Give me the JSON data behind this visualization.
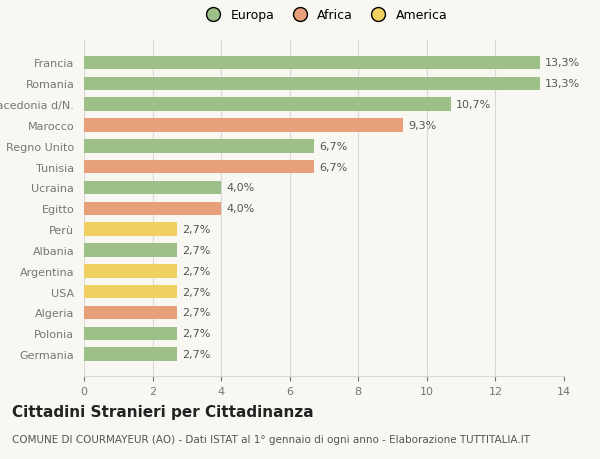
{
  "categories": [
    "Germania",
    "Polonia",
    "Algeria",
    "USA",
    "Argentina",
    "Albania",
    "Perù",
    "Egitto",
    "Ucraina",
    "Tunisia",
    "Regno Unito",
    "Marocco",
    "Macedonia d/N.",
    "Romania",
    "Francia"
  ],
  "values": [
    2.7,
    2.7,
    2.7,
    2.7,
    2.7,
    2.7,
    2.7,
    4.0,
    4.0,
    6.7,
    6.7,
    9.3,
    10.7,
    13.3,
    13.3
  ],
  "continents": [
    "Europa",
    "Europa",
    "Africa",
    "America",
    "America",
    "Europa",
    "America",
    "Africa",
    "Europa",
    "Africa",
    "Europa",
    "Africa",
    "Europa",
    "Europa",
    "Europa"
  ],
  "labels": [
    "2,7%",
    "2,7%",
    "2,7%",
    "2,7%",
    "2,7%",
    "2,7%",
    "2,7%",
    "4,0%",
    "4,0%",
    "6,7%",
    "6,7%",
    "9,3%",
    "10,7%",
    "13,3%",
    "13,3%"
  ],
  "colors": {
    "Europa": "#9dc088",
    "Africa": "#e8a07a",
    "America": "#f0d060"
  },
  "legend_labels": [
    "Europa",
    "Africa",
    "America"
  ],
  "legend_colors": [
    "#9dc088",
    "#e8a07a",
    "#f0d060"
  ],
  "title": "Cittadini Stranieri per Cittadinanza",
  "subtitle": "COMUNE DI COURMAYEUR (AO) - Dati ISTAT al 1° gennaio di ogni anno - Elaborazione TUTTITALIA.IT",
  "xlim": [
    0,
    14
  ],
  "xticks": [
    0,
    2,
    4,
    6,
    8,
    10,
    12,
    14
  ],
  "background_color": "#f9f7f2",
  "grid_color": "#d8d8d8",
  "label_fontsize": 8,
  "tick_fontsize": 8,
  "title_fontsize": 11,
  "subtitle_fontsize": 7.5,
  "legend_fontsize": 9
}
